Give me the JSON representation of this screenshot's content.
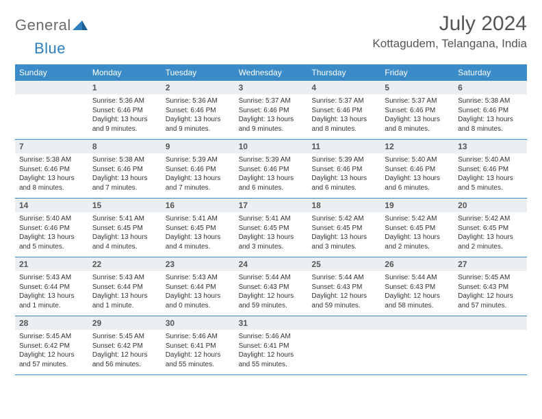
{
  "logo": {
    "text1": "General",
    "text2": "Blue"
  },
  "title": "July 2024",
  "location": "Kottagudem, Telangana, India",
  "colors": {
    "header_bg": "#3b8bc9",
    "header_text": "#ffffff",
    "daynum_bg": "#eceff1",
    "rule": "#3b8bc9",
    "logo_gray": "#6b6b6b",
    "logo_blue": "#2d7fbd"
  },
  "day_headers": [
    "Sunday",
    "Monday",
    "Tuesday",
    "Wednesday",
    "Thursday",
    "Friday",
    "Saturday"
  ],
  "weeks": [
    {
      "nums": [
        "",
        "1",
        "2",
        "3",
        "4",
        "5",
        "6"
      ],
      "cells": [
        "",
        "Sunrise: 5:36 AM\nSunset: 6:46 PM\nDaylight: 13 hours and 9 minutes.",
        "Sunrise: 5:36 AM\nSunset: 6:46 PM\nDaylight: 13 hours and 9 minutes.",
        "Sunrise: 5:37 AM\nSunset: 6:46 PM\nDaylight: 13 hours and 9 minutes.",
        "Sunrise: 5:37 AM\nSunset: 6:46 PM\nDaylight: 13 hours and 8 minutes.",
        "Sunrise: 5:37 AM\nSunset: 6:46 PM\nDaylight: 13 hours and 8 minutes.",
        "Sunrise: 5:38 AM\nSunset: 6:46 PM\nDaylight: 13 hours and 8 minutes."
      ]
    },
    {
      "nums": [
        "7",
        "8",
        "9",
        "10",
        "11",
        "12",
        "13"
      ],
      "cells": [
        "Sunrise: 5:38 AM\nSunset: 6:46 PM\nDaylight: 13 hours and 8 minutes.",
        "Sunrise: 5:38 AM\nSunset: 6:46 PM\nDaylight: 13 hours and 7 minutes.",
        "Sunrise: 5:39 AM\nSunset: 6:46 PM\nDaylight: 13 hours and 7 minutes.",
        "Sunrise: 5:39 AM\nSunset: 6:46 PM\nDaylight: 13 hours and 6 minutes.",
        "Sunrise: 5:39 AM\nSunset: 6:46 PM\nDaylight: 13 hours and 6 minutes.",
        "Sunrise: 5:40 AM\nSunset: 6:46 PM\nDaylight: 13 hours and 6 minutes.",
        "Sunrise: 5:40 AM\nSunset: 6:46 PM\nDaylight: 13 hours and 5 minutes."
      ]
    },
    {
      "nums": [
        "14",
        "15",
        "16",
        "17",
        "18",
        "19",
        "20"
      ],
      "cells": [
        "Sunrise: 5:40 AM\nSunset: 6:46 PM\nDaylight: 13 hours and 5 minutes.",
        "Sunrise: 5:41 AM\nSunset: 6:45 PM\nDaylight: 13 hours and 4 minutes.",
        "Sunrise: 5:41 AM\nSunset: 6:45 PM\nDaylight: 13 hours and 4 minutes.",
        "Sunrise: 5:41 AM\nSunset: 6:45 PM\nDaylight: 13 hours and 3 minutes.",
        "Sunrise: 5:42 AM\nSunset: 6:45 PM\nDaylight: 13 hours and 3 minutes.",
        "Sunrise: 5:42 AM\nSunset: 6:45 PM\nDaylight: 13 hours and 2 minutes.",
        "Sunrise: 5:42 AM\nSunset: 6:45 PM\nDaylight: 13 hours and 2 minutes."
      ]
    },
    {
      "nums": [
        "21",
        "22",
        "23",
        "24",
        "25",
        "26",
        "27"
      ],
      "cells": [
        "Sunrise: 5:43 AM\nSunset: 6:44 PM\nDaylight: 13 hours and 1 minute.",
        "Sunrise: 5:43 AM\nSunset: 6:44 PM\nDaylight: 13 hours and 1 minute.",
        "Sunrise: 5:43 AM\nSunset: 6:44 PM\nDaylight: 13 hours and 0 minutes.",
        "Sunrise: 5:44 AM\nSunset: 6:43 PM\nDaylight: 12 hours and 59 minutes.",
        "Sunrise: 5:44 AM\nSunset: 6:43 PM\nDaylight: 12 hours and 59 minutes.",
        "Sunrise: 5:44 AM\nSunset: 6:43 PM\nDaylight: 12 hours and 58 minutes.",
        "Sunrise: 5:45 AM\nSunset: 6:43 PM\nDaylight: 12 hours and 57 minutes."
      ]
    },
    {
      "nums": [
        "28",
        "29",
        "30",
        "31",
        "",
        "",
        ""
      ],
      "cells": [
        "Sunrise: 5:45 AM\nSunset: 6:42 PM\nDaylight: 12 hours and 57 minutes.",
        "Sunrise: 5:45 AM\nSunset: 6:42 PM\nDaylight: 12 hours and 56 minutes.",
        "Sunrise: 5:46 AM\nSunset: 6:41 PM\nDaylight: 12 hours and 55 minutes.",
        "Sunrise: 5:46 AM\nSunset: 6:41 PM\nDaylight: 12 hours and 55 minutes.",
        "",
        "",
        ""
      ]
    }
  ]
}
